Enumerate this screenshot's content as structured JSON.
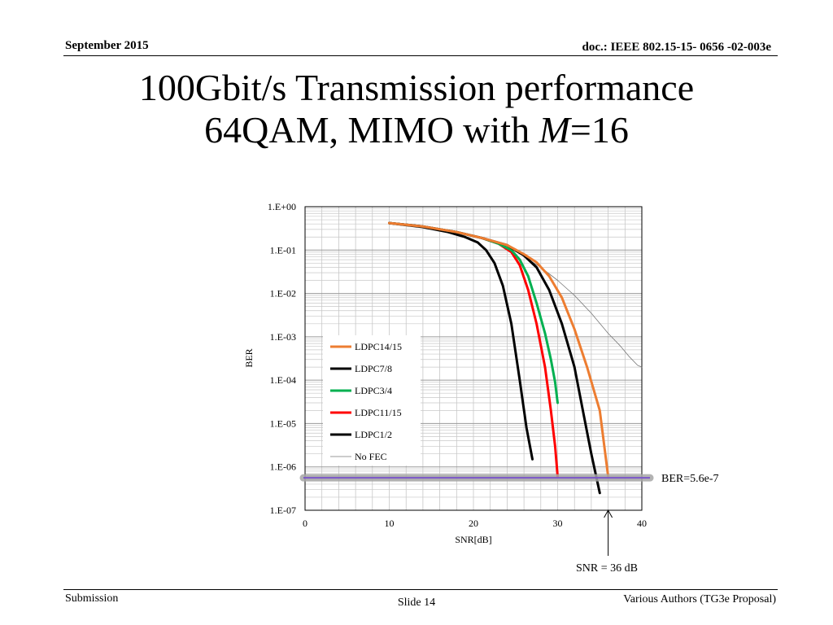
{
  "header": {
    "date": "September 2015",
    "doc": "doc.: IEEE 802.15-15- 0656 -02-003e"
  },
  "title": {
    "line1": "100Gbit/s Transmission performance",
    "line2_prefix": "64QAM, MIMO with ",
    "line2_var": "M",
    "line2_suffix": "=16"
  },
  "footer": {
    "left": "Submission",
    "center": "Slide 14",
    "right": "Various Authors (TG3e Proposal)"
  },
  "chart_data": {
    "type": "line",
    "xlabel": "SNR[dB]",
    "ylabel": "BER",
    "xlim": [
      0,
      40
    ],
    "ylim": [
      1e-07,
      1
    ],
    "yscale": "log",
    "grid": true,
    "legend_position": "left",
    "x_ticks": [
      "0",
      "10",
      "20",
      "30",
      "40"
    ],
    "y_ticks": [
      "1.E+00",
      "1.E-01",
      "1.E-02",
      "1.E-03",
      "1.E-04",
      "1.E-05",
      "1.E-06",
      "1.E-07"
    ],
    "series": [
      {
        "name": "LDPC14/15",
        "color": "#ed7d31",
        "width": 3,
        "x": [
          10,
          14,
          18,
          21,
          24,
          26,
          27.5,
          29,
          30.5,
          32,
          33.5,
          35,
          36
        ],
        "y": [
          0.42,
          0.35,
          0.26,
          0.19,
          0.13,
          0.08,
          0.052,
          0.025,
          0.008,
          0.0015,
          0.0002,
          2e-05,
          6e-07
        ]
      },
      {
        "name": "LDPC7/8",
        "color": "#000000",
        "width": 3,
        "x": [
          10,
          14,
          18,
          21,
          24,
          26,
          27.5,
          29,
          30.5,
          32,
          33,
          34,
          35
        ],
        "y": [
          0.42,
          0.35,
          0.26,
          0.19,
          0.13,
          0.075,
          0.04,
          0.012,
          0.002,
          0.0002,
          2e-05,
          2e-06,
          2.5e-07
        ]
      },
      {
        "name": "LDPC3/4",
        "color": "#00b050",
        "width": 3,
        "x": [
          10,
          14,
          18,
          21,
          23,
          24.5,
          25.5,
          26.5,
          27.5,
          28.5,
          29.2,
          29.7,
          30
        ],
        "y": [
          0.42,
          0.35,
          0.26,
          0.19,
          0.14,
          0.1,
          0.06,
          0.025,
          0.006,
          0.0012,
          0.0003,
          9e-05,
          3e-05
        ]
      },
      {
        "name": "LDPC11/15",
        "color": "#ff0000",
        "width": 3,
        "x": [
          10,
          14,
          18,
          21,
          23,
          24.5,
          25.5,
          26.5,
          27.5,
          28.5,
          29.2,
          29.7,
          30
        ],
        "y": [
          0.42,
          0.35,
          0.26,
          0.19,
          0.14,
          0.09,
          0.045,
          0.012,
          0.002,
          0.0002,
          2e-05,
          3e-06,
          6e-07
        ]
      },
      {
        "name": "LDPC1/2",
        "color": "#000000",
        "width": 3,
        "x": [
          10,
          14,
          17,
          19,
          20.5,
          21.5,
          22.5,
          23.5,
          24.5,
          25.5,
          26.3,
          27
        ],
        "y": [
          0.42,
          0.34,
          0.26,
          0.2,
          0.15,
          0.1,
          0.05,
          0.015,
          0.002,
          0.0001,
          8e-06,
          1.5e-06
        ]
      },
      {
        "name": "No FEC",
        "color": "#777777",
        "width": 0.8,
        "x": [
          26,
          28,
          30,
          32,
          34,
          36,
          37.5,
          38.5,
          39.5,
          40
        ],
        "y": [
          0.07,
          0.04,
          0.02,
          0.009,
          0.0035,
          0.0012,
          0.0006,
          0.00035,
          0.00022,
          0.0002
        ]
      }
    ],
    "threshold": {
      "label": "BER=5.6e-7",
      "value": 5.6e-07
    },
    "annotation": {
      "label": "SNR = 36 dB",
      "x": 36
    }
  }
}
